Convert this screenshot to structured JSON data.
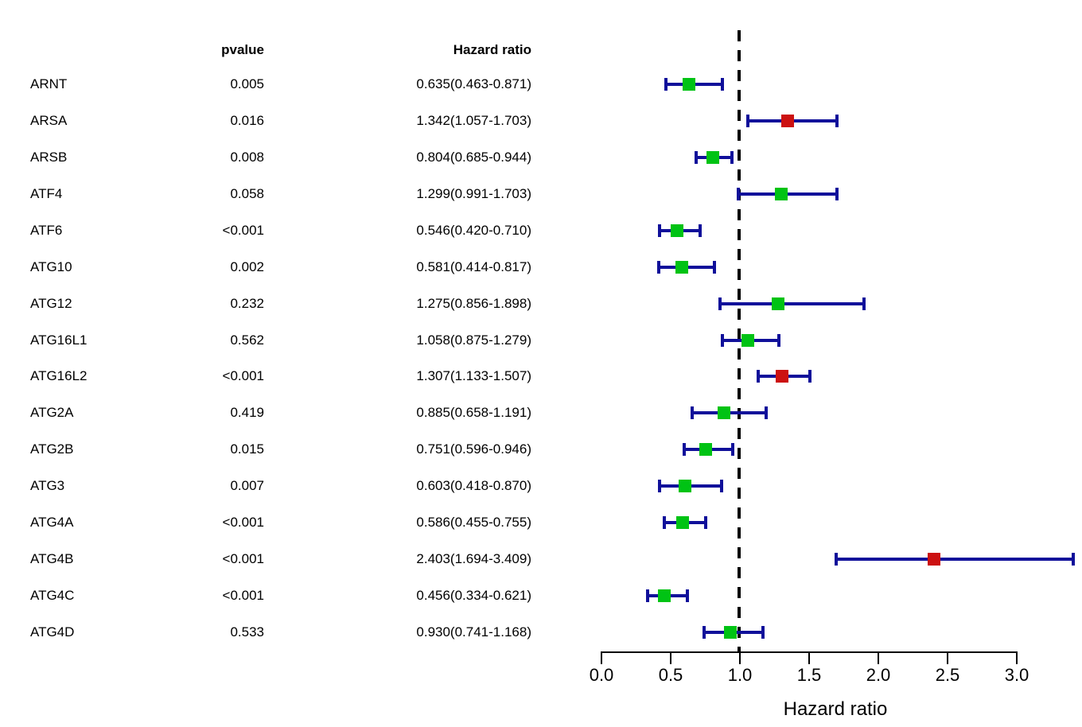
{
  "table": {
    "headers": {
      "pvalue": "pvalue",
      "hazard_ratio": "Hazard ratio"
    }
  },
  "chart_data": {
    "type": "scatter",
    "variant": "forest-plot",
    "xlabel": "Hazard ratio",
    "x_axis": {
      "min": 0,
      "max": 3,
      "tick_values": [
        0.0,
        0.5,
        1.0,
        1.5,
        2.0,
        2.5,
        3.0
      ],
      "tick_labels": [
        "0.0",
        "0.5",
        "1.0",
        "1.5",
        "2.0",
        "2.5",
        "3.0"
      ],
      "reference_line": 1.0,
      "reference_line_style": "dashed"
    },
    "legend_position": "none",
    "grid": false,
    "colors": {
      "marker_protective": "#00c314",
      "marker_risk": "#cc1111",
      "ci_line": "#10109a",
      "axis": "#000000",
      "text": "#000000"
    },
    "rows": [
      {
        "gene": "ARNT",
        "pvalue": "0.005",
        "hr_text": "0.635(0.463-0.871)",
        "hr": 0.635,
        "ci_low": 0.463,
        "ci_high": 0.871,
        "marker": "protective"
      },
      {
        "gene": "ARSA",
        "pvalue": "0.016",
        "hr_text": "1.342(1.057-1.703)",
        "hr": 1.342,
        "ci_low": 1.057,
        "ci_high": 1.703,
        "marker": "risk"
      },
      {
        "gene": "ARSB",
        "pvalue": "0.008",
        "hr_text": "0.804(0.685-0.944)",
        "hr": 0.804,
        "ci_low": 0.685,
        "ci_high": 0.944,
        "marker": "protective"
      },
      {
        "gene": "ATF4",
        "pvalue": "0.058",
        "hr_text": "1.299(0.991-1.703)",
        "hr": 1.299,
        "ci_low": 0.991,
        "ci_high": 1.703,
        "marker": "protective"
      },
      {
        "gene": "ATF6",
        "pvalue": "<0.001",
        "hr_text": "0.546(0.420-0.710)",
        "hr": 0.546,
        "ci_low": 0.42,
        "ci_high": 0.71,
        "marker": "protective"
      },
      {
        "gene": "ATG10",
        "pvalue": "0.002",
        "hr_text": "0.581(0.414-0.817)",
        "hr": 0.581,
        "ci_low": 0.414,
        "ci_high": 0.817,
        "marker": "protective"
      },
      {
        "gene": "ATG12",
        "pvalue": "0.232",
        "hr_text": "1.275(0.856-1.898)",
        "hr": 1.275,
        "ci_low": 0.856,
        "ci_high": 1.898,
        "marker": "protective"
      },
      {
        "gene": "ATG16L1",
        "pvalue": "0.562",
        "hr_text": "1.058(0.875-1.279)",
        "hr": 1.058,
        "ci_low": 0.875,
        "ci_high": 1.279,
        "marker": "protective"
      },
      {
        "gene": "ATG16L2",
        "pvalue": "<0.001",
        "hr_text": "1.307(1.133-1.507)",
        "hr": 1.307,
        "ci_low": 1.133,
        "ci_high": 1.507,
        "marker": "risk"
      },
      {
        "gene": "ATG2A",
        "pvalue": "0.419",
        "hr_text": "0.885(0.658-1.191)",
        "hr": 0.885,
        "ci_low": 0.658,
        "ci_high": 1.191,
        "marker": "protective"
      },
      {
        "gene": "ATG2B",
        "pvalue": "0.015",
        "hr_text": "0.751(0.596-0.946)",
        "hr": 0.751,
        "ci_low": 0.596,
        "ci_high": 0.946,
        "marker": "protective"
      },
      {
        "gene": "ATG3",
        "pvalue": "0.007",
        "hr_text": "0.603(0.418-0.870)",
        "hr": 0.603,
        "ci_low": 0.418,
        "ci_high": 0.87,
        "marker": "protective"
      },
      {
        "gene": "ATG4A",
        "pvalue": "<0.001",
        "hr_text": "0.586(0.455-0.755)",
        "hr": 0.586,
        "ci_low": 0.455,
        "ci_high": 0.755,
        "marker": "protective"
      },
      {
        "gene": "ATG4B",
        "pvalue": "<0.001",
        "hr_text": "2.403(1.694-3.409)",
        "hr": 2.403,
        "ci_low": 1.694,
        "ci_high": 3.409,
        "marker": "risk"
      },
      {
        "gene": "ATG4C",
        "pvalue": "<0.001",
        "hr_text": "0.456(0.334-0.621)",
        "hr": 0.456,
        "ci_low": 0.334,
        "ci_high": 0.621,
        "marker": "protective"
      },
      {
        "gene": "ATG4D",
        "pvalue": "0.533",
        "hr_text": "0.930(0.741-1.168)",
        "hr": 0.93,
        "ci_low": 0.741,
        "ci_high": 1.168,
        "marker": "protective"
      }
    ]
  }
}
